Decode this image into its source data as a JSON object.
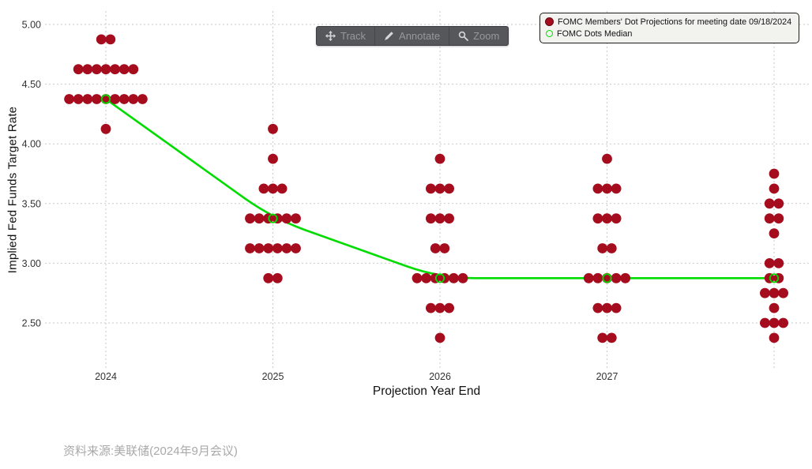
{
  "toolbar": {
    "buttons": [
      {
        "label": "Track",
        "icon": "move-icon"
      },
      {
        "label": "Annotate",
        "icon": "pencil-icon"
      },
      {
        "label": "Zoom",
        "icon": "magnifier-icon"
      }
    ]
  },
  "legend": {
    "items": [
      {
        "label": "FOMC Members' Dot Projections for meeting date 09/18/2024",
        "marker": "filled-dot",
        "color": "#a50d1e"
      },
      {
        "label": "FOMC Dots Median",
        "marker": "open-circle",
        "color": "#00dc00"
      }
    ]
  },
  "axes": {
    "y_title": "Implied Fed Funds Target Rate",
    "x_title": "Projection Year End"
  },
  "footer": {
    "source_text": "资料来源:美联储(2024年9月会议)"
  },
  "chart_data": {
    "type": "scatter",
    "title": "",
    "xlabel": "Projection Year End",
    "ylabel": "Implied Fed Funds Target Rate",
    "ylim": [
      2.25,
      5.1
    ],
    "grid": true,
    "grid_style": "dotted",
    "legend_position": "top-right",
    "dot_color": "#a50d1e",
    "median_color": "#00dc00",
    "y_ticks": [
      {
        "label": "5.00",
        "value": 5.0
      },
      {
        "label": "4.50",
        "value": 4.5
      },
      {
        "label": "4.00",
        "value": 4.0
      },
      {
        "label": "3.50",
        "value": 3.5
      },
      {
        "label": "3.00",
        "value": 3.0
      },
      {
        "label": "2.50",
        "value": 2.5
      }
    ],
    "columns": [
      {
        "label": "2024",
        "median": 4.375,
        "dots": [
          {
            "rate": 4.875,
            "count": 2
          },
          {
            "rate": 4.625,
            "count": 7
          },
          {
            "rate": 4.375,
            "count": 9
          },
          {
            "rate": 4.125,
            "count": 1
          }
        ]
      },
      {
        "label": "2025",
        "median": 3.375,
        "dots": [
          {
            "rate": 4.125,
            "count": 1
          },
          {
            "rate": 3.875,
            "count": 1
          },
          {
            "rate": 3.625,
            "count": 3
          },
          {
            "rate": 3.375,
            "count": 6
          },
          {
            "rate": 3.125,
            "count": 6
          },
          {
            "rate": 2.875,
            "count": 2
          }
        ]
      },
      {
        "label": "2026",
        "median": 2.875,
        "dots": [
          {
            "rate": 3.875,
            "count": 1
          },
          {
            "rate": 3.625,
            "count": 3
          },
          {
            "rate": 3.375,
            "count": 3
          },
          {
            "rate": 3.125,
            "count": 2
          },
          {
            "rate": 2.875,
            "count": 6
          },
          {
            "rate": 2.625,
            "count": 3
          },
          {
            "rate": 2.375,
            "count": 1
          }
        ]
      },
      {
        "label": "2027",
        "median": 2.875,
        "dots": [
          {
            "rate": 3.875,
            "count": 1
          },
          {
            "rate": 3.625,
            "count": 3
          },
          {
            "rate": 3.375,
            "count": 3
          },
          {
            "rate": 3.125,
            "count": 2
          },
          {
            "rate": 2.875,
            "count": 5
          },
          {
            "rate": 2.625,
            "count": 3
          },
          {
            "rate": 2.375,
            "count": 2
          }
        ]
      },
      {
        "label": "",
        "median": 2.875,
        "dots": [
          {
            "rate": 3.75,
            "count": 1
          },
          {
            "rate": 3.625,
            "count": 1
          },
          {
            "rate": 3.5,
            "count": 2
          },
          {
            "rate": 3.375,
            "count": 2
          },
          {
            "rate": 3.25,
            "count": 1
          },
          {
            "rate": 3.0,
            "count": 2
          },
          {
            "rate": 2.875,
            "count": 2
          },
          {
            "rate": 2.75,
            "count": 3
          },
          {
            "rate": 2.625,
            "count": 1
          },
          {
            "rate": 2.5,
            "count": 3
          },
          {
            "rate": 2.375,
            "count": 1
          }
        ]
      }
    ]
  }
}
